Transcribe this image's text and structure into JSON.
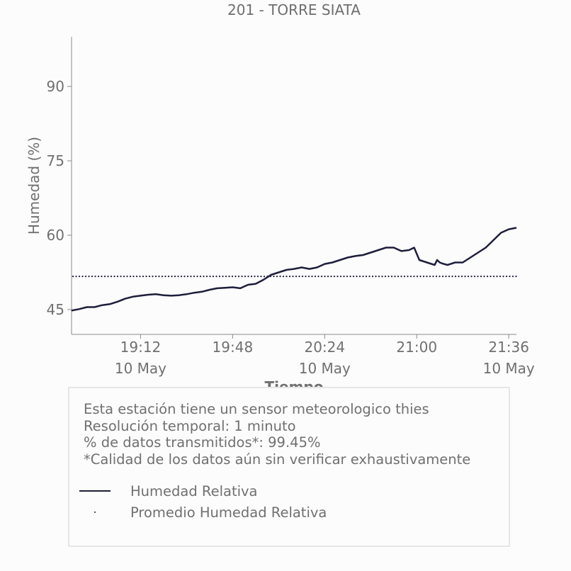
{
  "chart_data": {
    "type": "line",
    "title": "201 - TORRE SIATA",
    "xlabel": "Tiempo",
    "ylabel": "Humedad (%)",
    "ylim": [
      40,
      100
    ],
    "yticks": [
      45,
      60,
      75,
      90
    ],
    "ytick_labels": [
      "45",
      "60",
      "75",
      "90"
    ],
    "xlim": [
      "18:45",
      "21:39"
    ],
    "xticks": [
      "19:12",
      "19:48",
      "20:24",
      "21:00",
      "21:36"
    ],
    "xtick_labels": [
      "19:12",
      "19:48",
      "20:24",
      "21:00",
      "21:36"
    ],
    "xtick_sublabels": [
      "10 May",
      "",
      "10 May",
      "",
      "10 May"
    ],
    "x_unit": "time of day (10 May)",
    "grid": false,
    "series": [
      {
        "name": "Humedad Relativa",
        "style": "solid",
        "color": "#1e1e3c",
        "x": [
          "18:45",
          "18:48",
          "18:51",
          "18:54",
          "18:57",
          "19:00",
          "19:03",
          "19:06",
          "19:09",
          "19:12",
          "19:15",
          "19:18",
          "19:21",
          "19:24",
          "19:27",
          "19:30",
          "19:33",
          "19:36",
          "19:39",
          "19:42",
          "19:45",
          "19:48",
          "19:51",
          "19:54",
          "19:57",
          "20:00",
          "20:03",
          "20:06",
          "20:09",
          "20:12",
          "20:15",
          "20:18",
          "20:21",
          "20:24",
          "20:27",
          "20:30",
          "20:33",
          "20:36",
          "20:39",
          "20:42",
          "20:45",
          "20:48",
          "20:51",
          "20:54",
          "20:57",
          "20:59",
          "21:01",
          "21:04",
          "21:07",
          "21:08",
          "21:09",
          "21:10",
          "21:12",
          "21:15",
          "21:18",
          "21:21",
          "21:24",
          "21:27",
          "21:30",
          "21:33",
          "21:36",
          "21:39"
        ],
        "values": [
          44.8,
          45.1,
          45.5,
          45.5,
          45.9,
          46.1,
          46.6,
          47.2,
          47.6,
          47.8,
          48.0,
          48.1,
          47.9,
          47.8,
          47.9,
          48.1,
          48.4,
          48.6,
          49.0,
          49.3,
          49.4,
          49.5,
          49.3,
          50.0,
          50.2,
          51.0,
          52.0,
          52.5,
          53.0,
          53.2,
          53.5,
          53.2,
          53.5,
          54.2,
          54.5,
          55.0,
          55.5,
          55.8,
          56.0,
          56.5,
          57.0,
          57.5,
          57.5,
          56.8,
          57.0,
          57.5,
          55.0,
          54.5,
          54.0,
          55.0,
          54.5,
          54.3,
          54.0,
          54.5,
          54.5,
          55.5,
          56.5,
          57.5,
          59.0,
          60.5,
          61.2,
          61.5
        ]
      },
      {
        "name": "Promedio Humedad Relativa",
        "style": "dotted",
        "color": "#1e1e3c",
        "x": [
          "18:45",
          "21:39"
        ],
        "values": [
          51.7,
          51.7
        ]
      }
    ]
  },
  "info": {
    "lines": [
      "Esta estación tiene un sensor meteorologico thies",
      "Resolución temporal: 1 minuto",
      "% de datos transmitidos*: 99.45%",
      "*Calidad de los datos aún sin verificar exhaustivamente"
    ],
    "legend": [
      "Humedad Relativa",
      "Promedio Humedad Relativa"
    ]
  },
  "colors": {
    "series": "#1e1e3c",
    "text": "#6e6e6e",
    "axis": "#8a8a8a",
    "box_border": "#e6e6e6"
  }
}
